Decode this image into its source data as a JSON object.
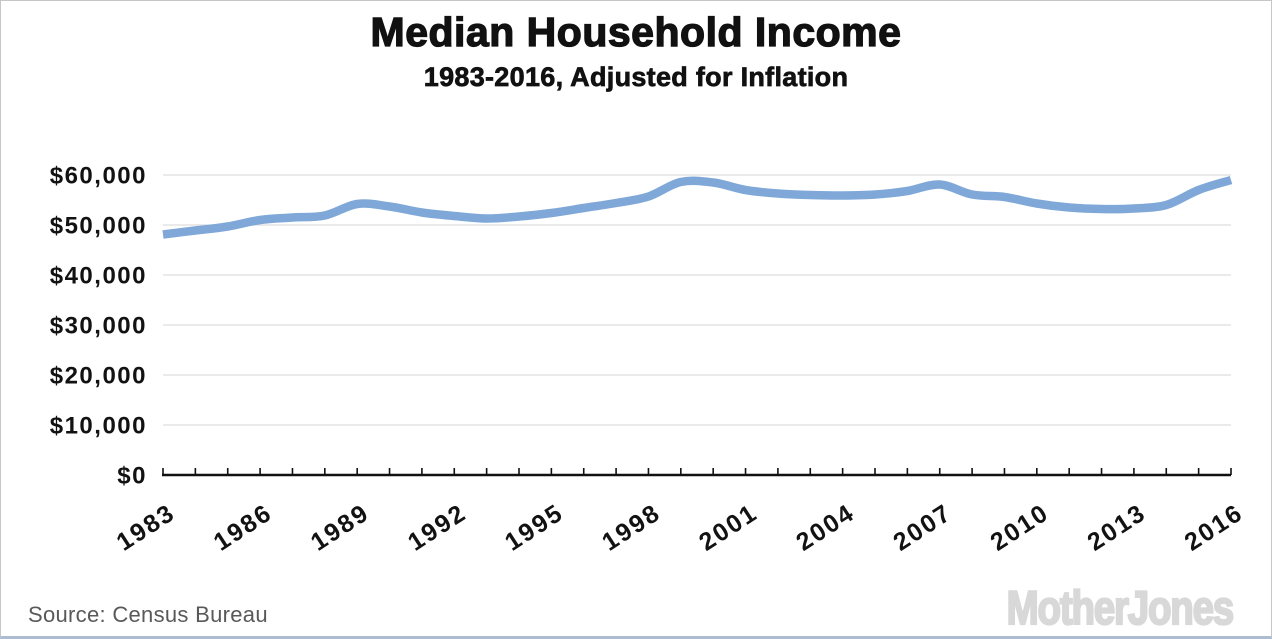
{
  "chart_data": {
    "type": "line",
    "title": "Median Household Income",
    "subtitle": "1983-2016, Adjusted for Inflation",
    "x": [
      1983,
      1984,
      1985,
      1986,
      1987,
      1988,
      1989,
      1990,
      1991,
      1992,
      1993,
      1994,
      1995,
      1996,
      1997,
      1998,
      1999,
      2000,
      2001,
      2002,
      2003,
      2004,
      2005,
      2006,
      2007,
      2008,
      2009,
      2010,
      2011,
      2012,
      2013,
      2014,
      2015,
      2016
    ],
    "y": [
      48100,
      48900,
      49700,
      51000,
      51500,
      51900,
      54200,
      53700,
      52500,
      51800,
      51300,
      51700,
      52400,
      53400,
      54400,
      55700,
      58600,
      58500,
      57000,
      56300,
      56000,
      55900,
      56100,
      56800,
      58100,
      56100,
      55600,
      54300,
      53500,
      53200,
      53300,
      54000,
      57000,
      59000
    ],
    "ylim": [
      0,
      66000
    ],
    "yticks": [
      0,
      10000,
      20000,
      30000,
      40000,
      50000,
      60000
    ],
    "ytick_labels": [
      "$0",
      "$10,000",
      "$20,000",
      "$30,000",
      "$40,000",
      "$50,000",
      "$60,000"
    ],
    "xticks_labeled": [
      1983,
      1986,
      1989,
      1992,
      1995,
      1998,
      2001,
      2004,
      2007,
      2010,
      2013,
      2016
    ],
    "grid": "horizontal",
    "legend": "none",
    "line_color": "#7FA8D8",
    "grid_color": "#dedede",
    "axis_color": "#111111",
    "source": "Source: Census Bureau",
    "logo_text": "MotherJones"
  }
}
